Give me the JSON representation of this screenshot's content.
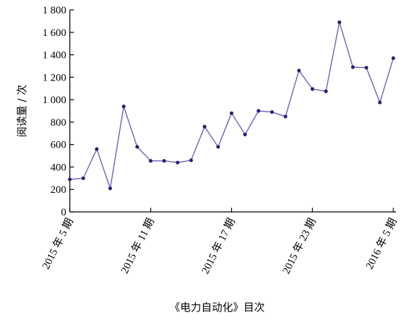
{
  "chart_data": {
    "type": "line",
    "title": "",
    "xlabel": "《电力自动化》目次",
    "ylabel": "阅读量 / 次",
    "ylim": [
      0,
      1800
    ],
    "yticks": [
      0,
      200,
      400,
      600,
      800,
      1000,
      1200,
      1400,
      1600,
      1800
    ],
    "ytick_labels": [
      "0",
      "200",
      "400",
      "600",
      "800",
      "1 000",
      "1 200",
      "1 400",
      "1 600",
      "1 800"
    ],
    "xtick_labels": [
      {
        "index": 0,
        "label": "2015 年 5 期"
      },
      {
        "index": 6,
        "label": "2015 年 11 期"
      },
      {
        "index": 12,
        "label": "2015 年 17 期"
      },
      {
        "index": 18,
        "label": "2015 年 23 期"
      },
      {
        "index": 24,
        "label": "2016 年 5 期"
      }
    ],
    "grid": false,
    "legend": "none",
    "line_color": "#6a62b0",
    "marker_color": "#2a1f6e",
    "series": [
      {
        "values": [
          290,
          300,
          560,
          210,
          940,
          580,
          455,
          455,
          440,
          460,
          760,
          580,
          880,
          690,
          900,
          890,
          850,
          1260,
          1095,
          1075,
          1690,
          1290,
          1285,
          975,
          1370
        ]
      }
    ]
  }
}
